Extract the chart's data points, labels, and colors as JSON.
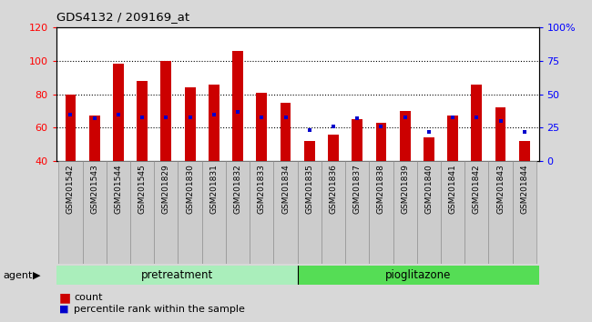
{
  "title": "GDS4132 / 209169_at",
  "categories": [
    "GSM201542",
    "GSM201543",
    "GSM201544",
    "GSM201545",
    "GSM201829",
    "GSM201830",
    "GSM201831",
    "GSM201832",
    "GSM201833",
    "GSM201834",
    "GSM201835",
    "GSM201836",
    "GSM201837",
    "GSM201838",
    "GSM201839",
    "GSM201840",
    "GSM201841",
    "GSM201842",
    "GSM201843",
    "GSM201844"
  ],
  "bar_values": [
    80,
    67,
    98,
    88,
    100,
    84,
    86,
    106,
    81,
    75,
    52,
    56,
    65,
    63,
    70,
    54,
    67,
    86,
    72,
    52
  ],
  "percentile_right": [
    35,
    32,
    35,
    33,
    33,
    33,
    35,
    37,
    33,
    33,
    23,
    26,
    32,
    26,
    33,
    22,
    33,
    33,
    30,
    22
  ],
  "bar_color": "#cc0000",
  "dot_color": "#0000cc",
  "ylim_left": [
    40,
    120
  ],
  "ylim_right": [
    0,
    100
  ],
  "yticks_left": [
    40,
    60,
    80,
    100,
    120
  ],
  "yticks_right": [
    0,
    25,
    50,
    75,
    100
  ],
  "ytick_labels_right": [
    "0",
    "25",
    "50",
    "75",
    "100%"
  ],
  "grid_values": [
    60,
    80,
    100
  ],
  "group_label_pretreatment": "pretreatment",
  "group_label_pioglitazone": "pioglitazone",
  "pretreatment_color": "#aaeebb",
  "pioglitazone_color": "#55dd55",
  "agent_label": "agent",
  "legend_count": "count",
  "legend_percentile": "percentile rank within the sample",
  "bar_width": 0.45,
  "fig_bg_color": "#d8d8d8",
  "plot_bg_color": "#ffffff"
}
